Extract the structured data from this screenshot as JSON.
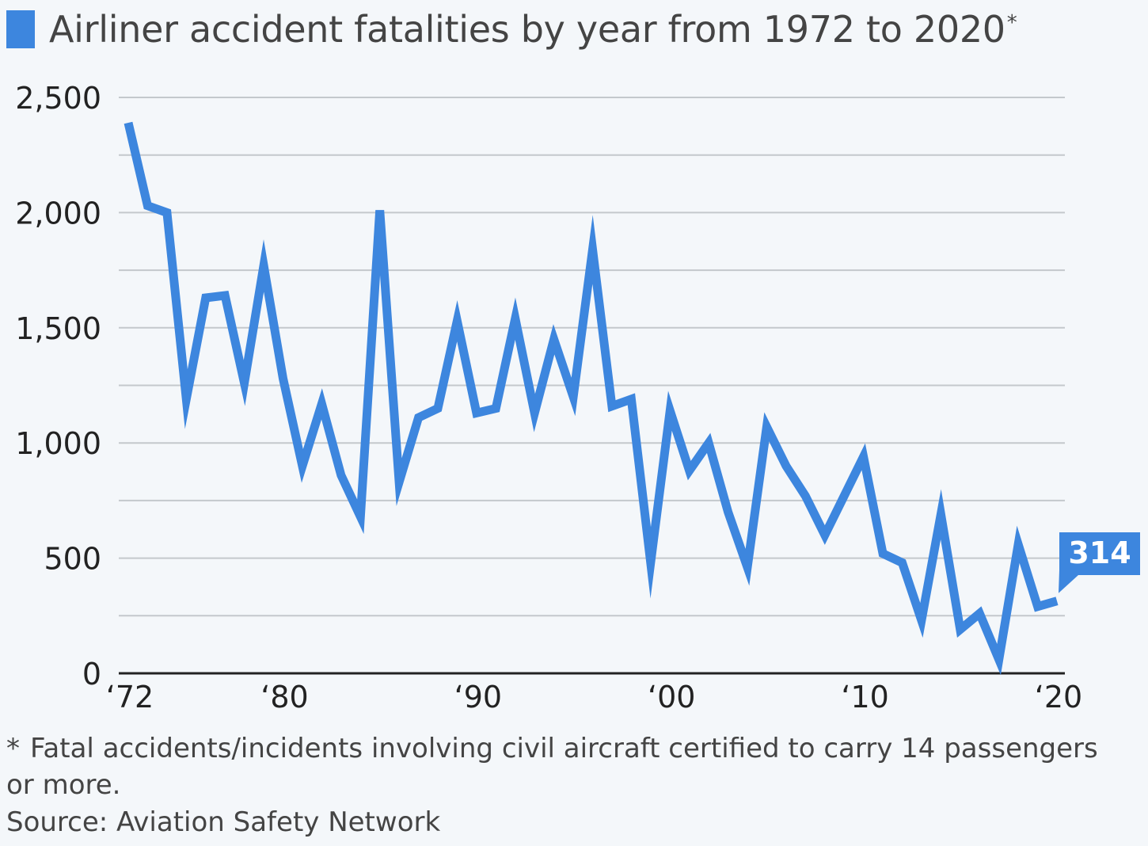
{
  "title": "Airliner accident fatalities by year from 1972 to 2020",
  "title_marker": "*",
  "footnote_marker": "*",
  "footnote": "Fatal accidents/incidents involving civil aircraft certified to carry 14 passengers or more.",
  "source": "Source: Aviation Safety Network",
  "colors": {
    "series": "#3d86de",
    "grid": "#c4c8cc",
    "background": "#f4f7fa"
  },
  "chart_data": {
    "type": "line",
    "title": "Airliner accident fatalities by year from 1972 to 2020",
    "xlabel": "",
    "ylabel": "",
    "ylim": [
      0,
      2500
    ],
    "xlim": [
      1972,
      2020
    ],
    "yticks": [
      0,
      500,
      1000,
      1500,
      2000,
      2500
    ],
    "ytick_labels": [
      "0",
      "500",
      "1,000",
      "1,500",
      "2,000",
      "2,500"
    ],
    "xticks": [
      1972,
      1980,
      1990,
      2000,
      2010,
      2020
    ],
    "xtick_labels": [
      "‘72",
      "‘80",
      "‘90",
      "‘00",
      "‘10",
      "‘20"
    ],
    "grid": true,
    "legend": "none",
    "x": [
      1972,
      1973,
      1974,
      1975,
      1976,
      1977,
      1978,
      1979,
      1980,
      1981,
      1982,
      1983,
      1984,
      1985,
      1986,
      1987,
      1988,
      1989,
      1990,
      1991,
      1992,
      1993,
      1994,
      1995,
      1996,
      1997,
      1998,
      1999,
      2000,
      2001,
      2002,
      2003,
      2004,
      2005,
      2006,
      2007,
      2008,
      2009,
      2010,
      2011,
      2012,
      2013,
      2014,
      2015,
      2016,
      2017,
      2018,
      2019,
      2020
    ],
    "series": [
      {
        "values": [
          2390,
          2030,
          2000,
          1190,
          1630,
          1640,
          1260,
          1770,
          1280,
          900,
          1170,
          860,
          680,
          2010,
          830,
          1110,
          1150,
          1530,
          1130,
          1150,
          1540,
          1130,
          1450,
          1200,
          1840,
          1160,
          1190,
          480,
          1140,
          880,
          1000,
          700,
          460,
          1070,
          900,
          770,
          600,
          770,
          940,
          520,
          480,
          230,
          690,
          190,
          260,
          60,
          560,
          290,
          314
        ]
      }
    ],
    "annotations": [
      {
        "x": 2020,
        "label": "314"
      }
    ]
  }
}
